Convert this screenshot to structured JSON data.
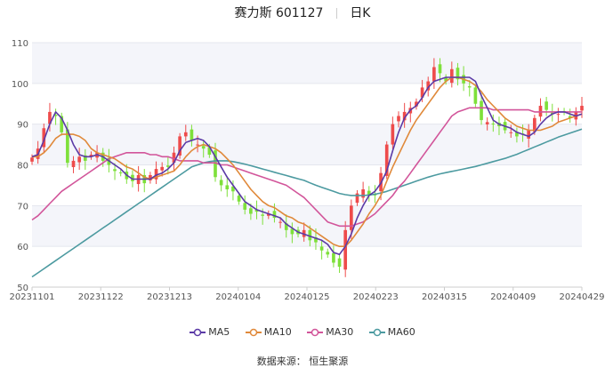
{
  "header": {
    "stock_name": "赛力斯",
    "stock_code": "601127",
    "period": "日K"
  },
  "legend": [
    {
      "name": "MA5",
      "color": "#5b3aa6"
    },
    {
      "name": "MA10",
      "color": "#e0893a"
    },
    {
      "name": "MA30",
      "color": "#d2559a"
    },
    {
      "name": "MA60",
      "color": "#4c9aa0"
    }
  ],
  "source": "数据来源：  恒生聚源",
  "colors": {
    "up": "#ee4b4b",
    "down": "#7ee03a",
    "grid_band": "#f4f5fa"
  },
  "chart_data": {
    "type": "candlestick",
    "ylim": [
      50,
      110
    ],
    "yticks": [
      50,
      60,
      70,
      80,
      90,
      100,
      110
    ],
    "xtick_labels": [
      "20231101",
      "20231122",
      "20231213",
      "20240104",
      "20240125",
      "20240223",
      "20240315",
      "20240409",
      "20240429"
    ],
    "close": [
      81.8,
      84,
      89,
      93,
      92,
      88,
      80.5,
      81,
      82,
      81,
      82.5,
      83,
      81,
      80,
      78.5,
      78,
      76.5,
      76,
      77.5,
      75.5,
      77.5,
      79,
      79.5,
      79.5,
      83,
      87,
      88,
      86,
      85,
      84,
      82.5,
      77,
      75,
      74,
      73.5,
      71,
      69,
      68,
      68.5,
      67.5,
      68,
      67,
      66,
      64,
      63,
      63,
      64,
      61.5,
      61,
      59,
      58,
      56,
      55,
      64,
      70,
      73,
      74,
      72.5,
      72.5,
      78,
      85,
      90,
      92,
      93,
      94,
      95.5,
      99,
      100.5,
      104,
      102.5,
      100.5,
      103.5,
      101,
      100,
      99,
      95,
      91,
      90.5,
      90,
      89.5,
      88.5,
      88,
      87,
      87.5,
      88.5,
      91.5,
      94.5,
      93.5,
      92.5,
      92.5,
      93,
      91.5,
      93,
      94.5
    ],
    "ma5": [
      82,
      82.5,
      86,
      90,
      93,
      91.5,
      88.5,
      85,
      82.5,
      82,
      82,
      82.5,
      82,
      81,
      80,
      79,
      77.5,
      76.5,
      76.5,
      76.5,
      76.5,
      77.5,
      78,
      79,
      80.5,
      83.5,
      85.5,
      86,
      86.5,
      86,
      84.5,
      82,
      79.5,
      77,
      75,
      73,
      71,
      70,
      69,
      68.5,
      68,
      67.5,
      67,
      65.5,
      64.5,
      63.5,
      63,
      62.5,
      62,
      61.5,
      60.5,
      58.5,
      58,
      60,
      63,
      67,
      70,
      72.5,
      73.5,
      75.5,
      78.5,
      83.5,
      88,
      91.5,
      93.5,
      94.5,
      96.5,
      99,
      100.5,
      101,
      101.5,
      101.5,
      101.5,
      101.5,
      101.5,
      100.5,
      97,
      94,
      91,
      90,
      89.5,
      89,
      88,
      87.5,
      87,
      88,
      90,
      91.5,
      92.5,
      93,
      93,
      92.5,
      92,
      92.5
    ],
    "ma10": [
      82,
      82,
      83,
      84.5,
      86.5,
      87.5,
      87.5,
      87.5,
      87,
      86,
      84,
      83,
      82.5,
      82,
      81.5,
      80.5,
      79.5,
      79,
      78,
      77,
      76.5,
      77,
      77.5,
      78,
      78.5,
      80,
      82,
      83.5,
      84.5,
      85,
      84.5,
      84,
      83,
      81.5,
      80,
      78,
      76,
      74,
      72.5,
      71,
      70,
      69.5,
      68.5,
      67.5,
      67,
      66,
      65.5,
      64.5,
      63.5,
      62.5,
      61.5,
      60.5,
      60,
      60,
      61.5,
      63.5,
      65.5,
      68,
      70,
      72.5,
      76,
      79.5,
      82.5,
      85.5,
      88.5,
      91,
      93,
      95,
      97,
      99,
      100.5,
      101.5,
      101.5,
      101,
      100.5,
      99.5,
      98,
      96,
      94.5,
      93,
      91.5,
      90.5,
      89.5,
      89,
      88.5,
      88.5,
      88.5,
      89,
      89.5,
      90.5,
      91,
      91.5,
      92,
      92.5
    ],
    "ma30": [
      66.5,
      67.5,
      69,
      70.5,
      72,
      73.5,
      74.5,
      75.5,
      76.5,
      77.5,
      78.5,
      79.5,
      80.5,
      81.5,
      82,
      82.5,
      83,
      83,
      83,
      83,
      82.5,
      82.5,
      82,
      82,
      81.5,
      81,
      81,
      81,
      81,
      80.5,
      80.5,
      80.5,
      80,
      80,
      79.5,
      79,
      78.5,
      78,
      77.5,
      77,
      76.5,
      76,
      75.5,
      75,
      74,
      73,
      72,
      70.5,
      69,
      67.5,
      66,
      65.5,
      65,
      65,
      65,
      65.5,
      66,
      67,
      68,
      69.5,
      71,
      72.5,
      74.5,
      76,
      78,
      80,
      82,
      84,
      86,
      88,
      90,
      92,
      93,
      93.5,
      94,
      94,
      94,
      94,
      93.5,
      93.5,
      93.5,
      93.5,
      93.5,
      93.5,
      93.5,
      93,
      93,
      93,
      93,
      93,
      93,
      93,
      93,
      93
    ],
    "ma60": [
      52.5,
      53.5,
      54.5,
      55.5,
      56.5,
      57.5,
      58.5,
      59.5,
      60.5,
      61.5,
      62.5,
      63.5,
      64.5,
      65.5,
      66.5,
      67.5,
      68.5,
      69.5,
      70.5,
      71.5,
      72.5,
      73.5,
      74.5,
      75.5,
      76.5,
      77.5,
      78.5,
      79.5,
      80,
      80.5,
      80.8,
      81,
      81,
      81,
      80.8,
      80.5,
      80.2,
      79.8,
      79.4,
      79,
      78.6,
      78.2,
      77.8,
      77.4,
      77,
      76.6,
      76.2,
      75.6,
      75,
      74.5,
      74,
      73.5,
      73,
      72.7,
      72.5,
      72.5,
      72.5,
      72.6,
      72.8,
      73.1,
      73.5,
      74,
      74.5,
      75,
      75.5,
      76,
      76.5,
      77,
      77.4,
      77.8,
      78.1,
      78.4,
      78.7,
      79,
      79.3,
      79.6,
      80,
      80.4,
      80.8,
      81.2,
      81.6,
      82.1,
      82.6,
      83.2,
      83.8,
      84.4,
      85,
      85.6,
      86.2,
      86.8,
      87.3,
      87.8,
      88.3,
      88.8
    ]
  }
}
